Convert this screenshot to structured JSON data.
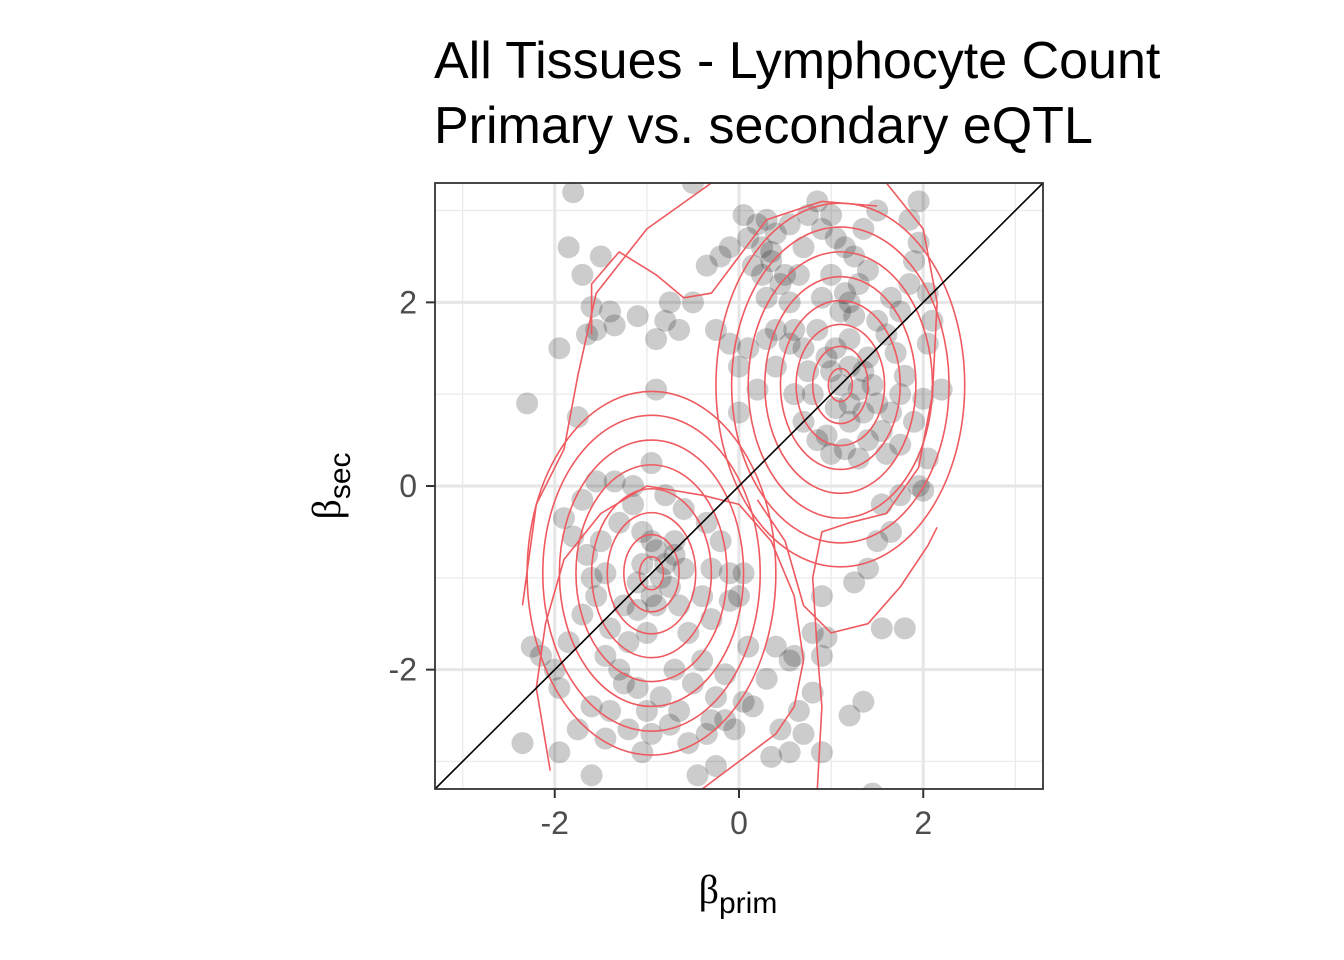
{
  "chart_data": {
    "type": "scatter",
    "title_lines": [
      "All Tissues - Lymphocyte Count",
      "Primary vs. secondary eQTL"
    ],
    "xlabel": {
      "symbol": "β",
      "sub": "prim"
    },
    "ylabel": {
      "symbol": "β",
      "sub": "sec"
    },
    "xlim": [
      -3.3,
      3.3
    ],
    "ylim": [
      -3.3,
      3.3
    ],
    "xticks": [
      -2,
      0,
      2
    ],
    "yticks": [
      -2,
      0,
      2
    ],
    "xtick_labels": [
      "-2",
      "0",
      "2"
    ],
    "ytick_labels": [
      "-2",
      "0",
      "2"
    ],
    "grid": true,
    "reference_line": {
      "type": "identity",
      "color": "#000000"
    },
    "contour": {
      "color": "#ee5a5f",
      "modes": [
        [
          -0.95,
          -0.95
        ],
        [
          1.1,
          1.1
        ]
      ]
    },
    "point_color": "#000000",
    "point_opacity": 0.2,
    "points": [
      [
        -1.8,
        3.2
      ],
      [
        -1.85,
        2.6
      ],
      [
        -1.7,
        2.3
      ],
      [
        -1.5,
        2.5
      ],
      [
        -1.6,
        1.95
      ],
      [
        -1.4,
        1.9
      ],
      [
        -1.55,
        1.7
      ],
      [
        -1.65,
        1.65
      ],
      [
        -1.95,
        1.5
      ],
      [
        -1.35,
        1.75
      ],
      [
        -1.1,
        1.85
      ],
      [
        -2.3,
        0.9
      ],
      [
        -1.75,
        0.75
      ],
      [
        -0.9,
        1.6
      ],
      [
        -0.9,
        1.05
      ],
      [
        -0.75,
        2.0
      ],
      [
        -0.8,
        1.8
      ],
      [
        -0.65,
        1.7
      ],
      [
        -0.5,
        2.0
      ],
      [
        -0.35,
        2.4
      ],
      [
        -0.2,
        2.5
      ],
      [
        -0.1,
        2.6
      ],
      [
        -0.25,
        1.7
      ],
      [
        -0.1,
        1.55
      ],
      [
        0.0,
        1.3
      ],
      [
        0.1,
        1.5
      ],
      [
        -0.5,
        3.3
      ],
      [
        0.05,
        2.95
      ],
      [
        0.1,
        2.7
      ],
      [
        0.2,
        2.85
      ],
      [
        0.3,
        2.9
      ],
      [
        0.25,
        2.6
      ],
      [
        0.15,
        2.4
      ],
      [
        0.25,
        2.3
      ],
      [
        0.35,
        2.45
      ],
      [
        0.45,
        2.2
      ],
      [
        0.3,
        2.05
      ],
      [
        0.5,
        2.3
      ],
      [
        0.65,
        2.3
      ],
      [
        0.55,
        2.0
      ],
      [
        0.4,
        1.7
      ],
      [
        0.55,
        1.55
      ],
      [
        0.3,
        1.6
      ],
      [
        0.6,
        1.7
      ],
      [
        0.7,
        1.5
      ],
      [
        0.75,
        1.25
      ],
      [
        0.8,
        1.0
      ],
      [
        0.6,
        1.0
      ],
      [
        0.4,
        1.3
      ],
      [
        0.2,
        1.05
      ],
      [
        0.0,
        0.8
      ],
      [
        0.55,
        2.85
      ],
      [
        0.75,
        2.95
      ],
      [
        0.85,
        3.1
      ],
      [
        0.9,
        2.8
      ],
      [
        1.0,
        2.95
      ],
      [
        1.05,
        2.7
      ],
      [
        1.15,
        2.6
      ],
      [
        1.25,
        2.5
      ],
      [
        1.35,
        2.8
      ],
      [
        1.5,
        3.0
      ],
      [
        1.4,
        2.35
      ],
      [
        1.3,
        2.2
      ],
      [
        1.15,
        2.1
      ],
      [
        1.0,
        2.3
      ],
      [
        0.9,
        2.05
      ],
      [
        1.1,
        1.9
      ],
      [
        1.25,
        1.85
      ],
      [
        1.2,
        1.6
      ],
      [
        1.05,
        1.5
      ],
      [
        0.95,
        1.4
      ],
      [
        1.0,
        1.25
      ],
      [
        1.1,
        1.1
      ],
      [
        1.2,
        1.3
      ],
      [
        1.35,
        1.25
      ],
      [
        1.3,
        1.05
      ],
      [
        1.45,
        1.1
      ],
      [
        1.5,
        0.9
      ],
      [
        1.35,
        0.8
      ],
      [
        1.2,
        0.7
      ],
      [
        1.05,
        0.85
      ],
      [
        0.95,
        0.55
      ],
      [
        0.85,
        0.5
      ],
      [
        1.0,
        0.35
      ],
      [
        1.15,
        0.4
      ],
      [
        1.3,
        0.3
      ],
      [
        1.4,
        0.5
      ],
      [
        1.55,
        0.6
      ],
      [
        1.65,
        0.8
      ],
      [
        1.75,
        1.0
      ],
      [
        1.8,
        1.2
      ],
      [
        1.7,
        1.45
      ],
      [
        1.6,
        1.65
      ],
      [
        1.75,
        1.9
      ],
      [
        1.85,
        2.2
      ],
      [
        1.9,
        2.45
      ],
      [
        1.95,
        2.65
      ],
      [
        1.85,
        2.9
      ],
      [
        1.95,
        3.1
      ],
      [
        2.05,
        2.1
      ],
      [
        2.1,
        1.8
      ],
      [
        2.05,
        1.55
      ],
      [
        2.2,
        1.05
      ],
      [
        2.0,
        0.95
      ],
      [
        1.9,
        0.7
      ],
      [
        2.05,
        0.3
      ],
      [
        1.95,
        0.0
      ],
      [
        2.0,
        -0.05
      ],
      [
        1.75,
        -0.1
      ],
      [
        1.55,
        -0.2
      ],
      [
        1.65,
        -0.5
      ],
      [
        1.5,
        -0.6
      ],
      [
        1.4,
        -0.9
      ],
      [
        1.25,
        -1.05
      ],
      [
        1.55,
        -1.55
      ],
      [
        1.8,
        -1.55
      ],
      [
        1.45,
        -3.35
      ],
      [
        1.2,
        -2.5
      ],
      [
        1.35,
        -2.35
      ],
      [
        0.95,
        -1.65
      ],
      [
        0.9,
        -1.85
      ],
      [
        0.8,
        -2.25
      ],
      [
        0.7,
        -2.7
      ],
      [
        0.55,
        -2.9
      ],
      [
        0.35,
        -2.95
      ],
      [
        0.15,
        -2.4
      ],
      [
        0.3,
        -2.1
      ],
      [
        0.55,
        -1.9
      ],
      [
        0.4,
        -1.75
      ],
      [
        0.1,
        -1.75
      ],
      [
        0.0,
        -1.2
      ],
      [
        -0.1,
        -0.95
      ],
      [
        0.05,
        -0.95
      ],
      [
        -0.1,
        -1.25
      ],
      [
        -0.3,
        -1.45
      ],
      [
        -0.4,
        -1.9
      ],
      [
        -0.15,
        -2.05
      ],
      [
        -0.25,
        -2.3
      ],
      [
        -0.5,
        -2.15
      ],
      [
        -0.7,
        -2.0
      ],
      [
        -0.85,
        -2.3
      ],
      [
        -1.0,
        -2.45
      ],
      [
        -1.25,
        -2.15
      ],
      [
        -1.4,
        -2.45
      ],
      [
        -1.6,
        -2.4
      ],
      [
        -1.75,
        -2.65
      ],
      [
        -1.95,
        -2.2
      ],
      [
        -2.15,
        -1.85
      ],
      [
        -2.25,
        -1.75
      ],
      [
        -2.0,
        -2.0
      ],
      [
        -1.85,
        -1.7
      ],
      [
        -1.7,
        -1.4
      ],
      [
        -1.55,
        -1.2
      ],
      [
        -1.45,
        -0.95
      ],
      [
        -1.65,
        -0.75
      ],
      [
        -1.8,
        -0.55
      ],
      [
        -1.9,
        -0.35
      ],
      [
        -1.7,
        -0.15
      ],
      [
        -1.55,
        0.05
      ],
      [
        -1.35,
        0.05
      ],
      [
        -1.15,
        -0.2
      ],
      [
        -1.05,
        -0.5
      ],
      [
        -0.9,
        -0.7
      ],
      [
        -0.8,
        -0.85
      ],
      [
        -0.7,
        -0.6
      ],
      [
        -0.6,
        -0.9
      ],
      [
        -0.75,
        -1.1
      ],
      [
        -0.95,
        -1.2
      ],
      [
        -1.1,
        -1.05
      ],
      [
        -1.25,
        -1.3
      ],
      [
        -1.4,
        -1.55
      ],
      [
        -1.2,
        -1.7
      ],
      [
        -1.0,
        -1.6
      ],
      [
        -0.9,
        -1.3
      ],
      [
        -0.55,
        -1.6
      ],
      [
        -0.4,
        -1.2
      ],
      [
        -0.3,
        -0.9
      ],
      [
        -0.2,
        -0.6
      ],
      [
        -0.35,
        -0.4
      ],
      [
        -0.6,
        -0.25
      ],
      [
        -0.8,
        -0.1
      ],
      [
        -0.95,
        0.25
      ],
      [
        -1.15,
        0.0
      ],
      [
        -1.3,
        -0.4
      ],
      [
        -1.5,
        -0.6
      ],
      [
        -1.6,
        -1.0
      ],
      [
        -1.45,
        -1.85
      ],
      [
        -1.3,
        -2.0
      ],
      [
        -1.1,
        -2.2
      ],
      [
        -0.95,
        -2.7
      ],
      [
        -0.75,
        -2.6
      ],
      [
        -0.55,
        -2.8
      ],
      [
        -0.35,
        -2.7
      ],
      [
        -0.25,
        -3.05
      ],
      [
        -0.45,
        -3.15
      ],
      [
        -0.65,
        -2.45
      ],
      [
        -1.2,
        -2.65
      ],
      [
        -1.05,
        -2.9
      ],
      [
        -1.45,
        -2.75
      ],
      [
        -2.35,
        -2.8
      ],
      [
        -1.95,
        -2.9
      ],
      [
        -1.6,
        -3.15
      ],
      [
        -0.3,
        -2.55
      ],
      [
        -0.05,
        -2.65
      ],
      [
        0.05,
        -2.35
      ],
      [
        -0.15,
        -2.55
      ],
      [
        0.9,
        -1.2
      ],
      [
        0.8,
        -1.6
      ],
      [
        0.6,
        -1.85
      ],
      [
        0.9,
        -2.9
      ],
      [
        0.45,
        -2.65
      ],
      [
        0.65,
        -2.45
      ],
      [
        -1.05,
        -0.85
      ],
      [
        -0.85,
        -1.0
      ],
      [
        -0.7,
        -0.75
      ],
      [
        -0.95,
        -0.6
      ],
      [
        -0.65,
        -1.3
      ],
      [
        -1.1,
        -1.35
      ],
      [
        1.2,
        0.9
      ],
      [
        1.4,
        1.4
      ],
      [
        0.85,
        1.7
      ],
      [
        1.5,
        1.8
      ],
      [
        1.65,
        2.05
      ],
      [
        1.2,
        2.0
      ],
      [
        0.7,
        2.6
      ],
      [
        0.4,
        2.75
      ],
      [
        1.6,
        0.35
      ],
      [
        0.7,
        0.7
      ],
      [
        1.75,
        0.45
      ],
      [
        0.35,
        2.55
      ]
    ]
  }
}
